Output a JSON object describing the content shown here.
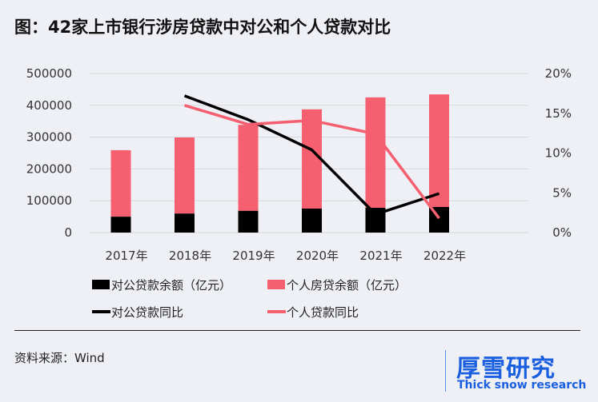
{
  "title": "图：42家上市银行涉房贷款中对公和个人贷款对比",
  "source": "资料来源：Wind",
  "logo": {
    "cn": "厚雪研究",
    "en": "Thick snow research"
  },
  "watermark": "厚雪研究 Thick snow research",
  "chart_data": {
    "type": "bar+line",
    "categories": [
      "2017年",
      "2018年",
      "2019年",
      "2020年",
      "2021年",
      "2022年"
    ],
    "bar_series": [
      {
        "name": "对公贷款余额（亿元）",
        "color": "#000000",
        "values": [
          50000,
          60000,
          68600,
          75400,
          78000,
          80400
        ]
      },
      {
        "name": "个人房贷余额（亿元）",
        "color": "#f65f70",
        "values": [
          209000,
          239000,
          270000,
          312000,
          347000,
          354000
        ]
      }
    ],
    "line_series": [
      {
        "name": "对公贷款同比",
        "color": "#000000",
        "values": [
          null,
          17.2,
          14.2,
          10.4,
          2.3,
          4.9
        ]
      },
      {
        "name": "个人贷款同比",
        "color": "#f65f70",
        "values": [
          null,
          16.0,
          13.6,
          14.1,
          12.4,
          1.8
        ]
      }
    ],
    "stacked": true,
    "y_left": {
      "ticks": [
        "0",
        "100000",
        "200000",
        "300000",
        "400000",
        "500000"
      ],
      "range": [
        0,
        500000
      ]
    },
    "y_right": {
      "ticks": [
        "0%",
        "5%",
        "10%",
        "15%",
        "20%"
      ],
      "range": [
        0,
        20
      ]
    },
    "grid": true,
    "legend_placement": "bottom"
  }
}
